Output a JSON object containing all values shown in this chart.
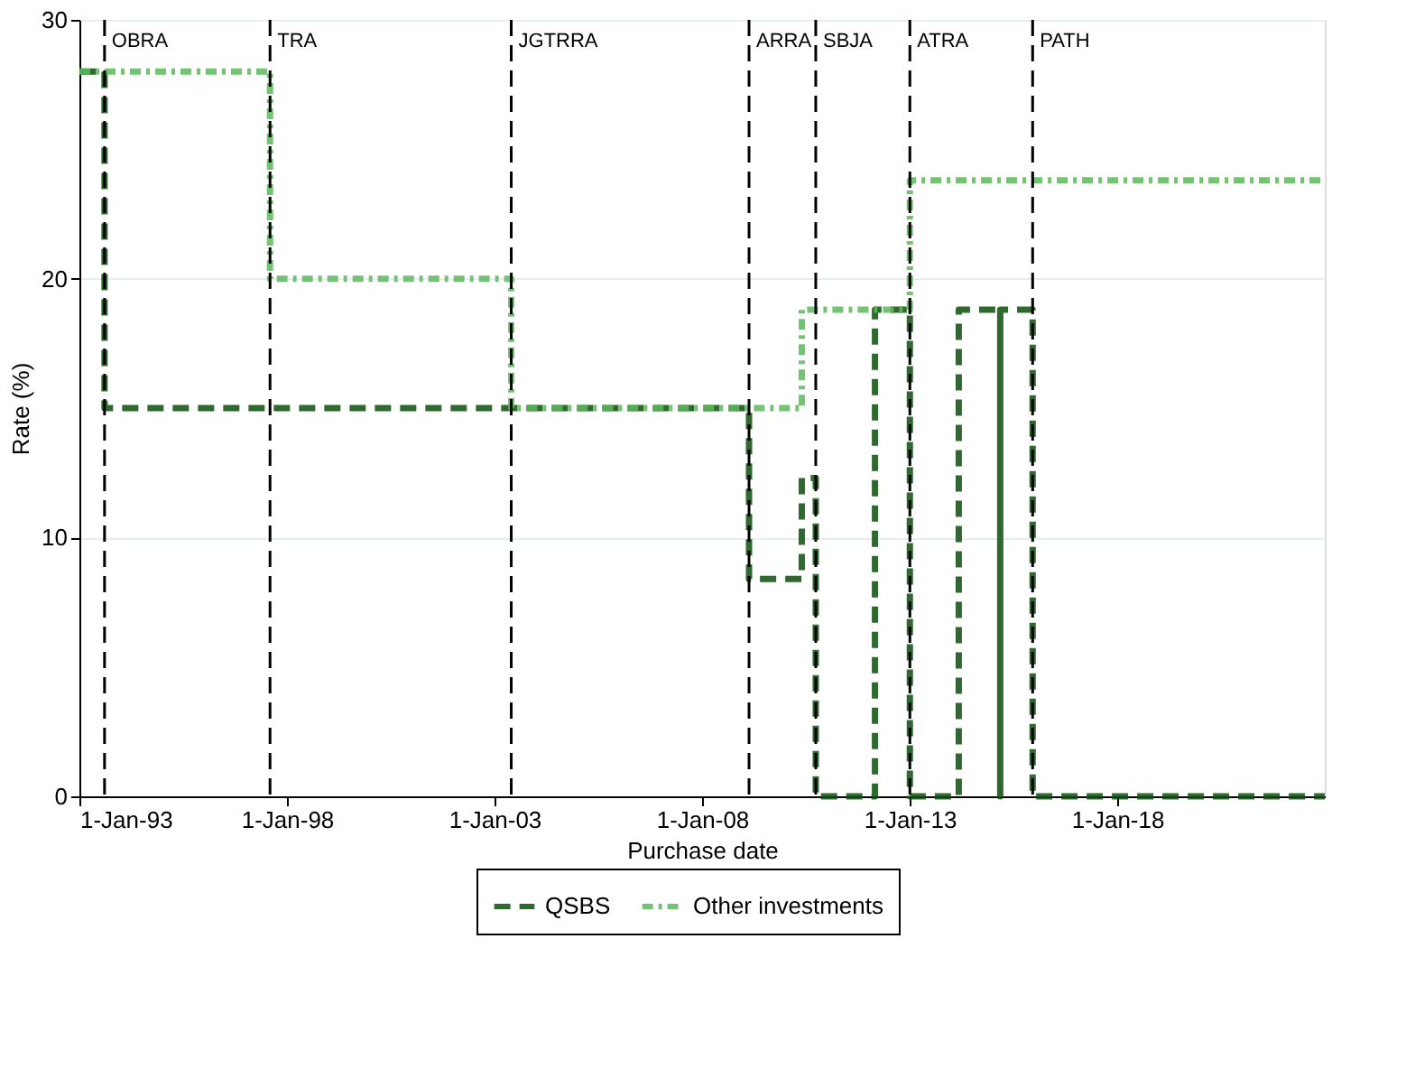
{
  "chart_data": {
    "type": "step",
    "xlabel": "Purchase date",
    "ylabel": "Rate (%)",
    "xlim": [
      "1993-01-01",
      "2022-12-31"
    ],
    "xticks": [
      {
        "value": "1993-01-01",
        "label": "1-Jan-93"
      },
      {
        "value": "1998-01-01",
        "label": "1-Jan-98"
      },
      {
        "value": "2003-01-01",
        "label": "1-Jan-03"
      },
      {
        "value": "2008-01-01",
        "label": "1-Jan-08"
      },
      {
        "value": "2013-01-01",
        "label": "1-Jan-13"
      },
      {
        "value": "2018-01-01",
        "label": "1-Jan-18"
      }
    ],
    "ylim": [
      0,
      30
    ],
    "yticks": [
      0,
      10,
      20,
      30
    ],
    "grid": "y",
    "legend": "bottom",
    "series": [
      {
        "name": "QSBS",
        "color": "#0b4f0b",
        "line_style": "dashed",
        "x": [
          "1993-01-01",
          "1993-08-10",
          "2009-02-17",
          "2010-05-27",
          "2010-09-27",
          "2012-03-01",
          "2013-01-02",
          "2014-03-08",
          "2015-03-08",
          "2015-03-08",
          "2015-12-18",
          "2022-12-31"
        ],
        "values": [
          28,
          15,
          8.4,
          12.3,
          0,
          18.8,
          0,
          18.8,
          0,
          18.8,
          0,
          0
        ]
      },
      {
        "name": "Other investments",
        "color": "#5cb85c",
        "line_style": "dotted",
        "x": [
          "1993-01-01",
          "1997-08-05",
          "2003-05-28",
          "2010-05-27",
          "2013-01-02",
          "2022-12-31"
        ],
        "values": [
          28,
          20,
          15,
          18.8,
          23.8,
          23.8
        ]
      }
    ],
    "ref_lines": [
      {
        "axis": "x",
        "value": "1993-08-10",
        "label": "OBRA",
        "line_style": "dashed",
        "color": "#000000"
      },
      {
        "axis": "x",
        "value": "1997-08-05",
        "label": "TRA",
        "line_style": "dashed",
        "color": "#000000"
      },
      {
        "axis": "x",
        "value": "2003-05-28",
        "label": "JGTRRA",
        "line_style": "dashed",
        "color": "#000000"
      },
      {
        "axis": "x",
        "value": "2009-02-17",
        "label": "ARRA",
        "line_style": "dashed",
        "color": "#000000"
      },
      {
        "axis": "x",
        "value": "2010-09-27",
        "label": "SBJA",
        "line_style": "dashed",
        "color": "#000000"
      },
      {
        "axis": "x",
        "value": "2013-01-02",
        "label": "ATRA",
        "line_style": "dashed",
        "color": "#000000"
      },
      {
        "axis": "x",
        "value": "2015-12-18",
        "label": "PATH",
        "line_style": "dashed",
        "color": "#000000"
      }
    ]
  }
}
